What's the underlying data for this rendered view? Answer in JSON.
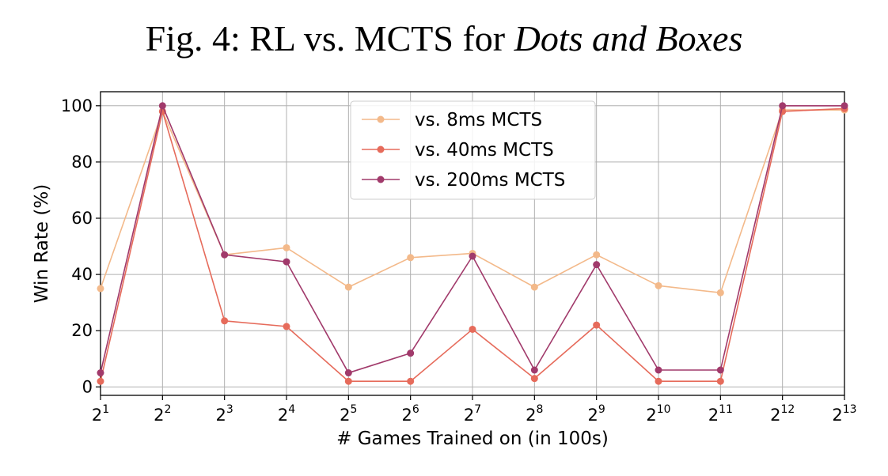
{
  "figure": {
    "title_prefix": "Fig. 4: RL vs. MCTS for ",
    "title_italic": "Dots and Boxes"
  },
  "chart_data": {
    "type": "line",
    "xlabel": "# Games Trained on (in 100s)",
    "ylabel": "Win Rate (%)",
    "x_tick_labels": [
      {
        "base": "2",
        "exp": "1"
      },
      {
        "base": "2",
        "exp": "2"
      },
      {
        "base": "2",
        "exp": "3"
      },
      {
        "base": "2",
        "exp": "4"
      },
      {
        "base": "2",
        "exp": "5"
      },
      {
        "base": "2",
        "exp": "6"
      },
      {
        "base": "2",
        "exp": "7"
      },
      {
        "base": "2",
        "exp": "8"
      },
      {
        "base": "2",
        "exp": "9"
      },
      {
        "base": "2",
        "exp": "10"
      },
      {
        "base": "2",
        "exp": "11"
      },
      {
        "base": "2",
        "exp": "12"
      },
      {
        "base": "2",
        "exp": "13"
      }
    ],
    "x": [
      2,
      4,
      8,
      16,
      32,
      64,
      128,
      256,
      512,
      1024,
      2048,
      4096,
      8192
    ],
    "x_scale": "log2",
    "y_ticks": [
      0,
      20,
      40,
      60,
      80,
      100
    ],
    "ylim": [
      -3,
      105
    ],
    "grid": true,
    "legend_position": "top-center",
    "series": [
      {
        "name": "vs. 8ms MCTS",
        "color": "#f3b98a",
        "values": [
          35,
          98,
          47,
          49.5,
          35.5,
          46,
          47.5,
          35.5,
          47,
          36,
          33.5,
          98.5,
          98.5
        ]
      },
      {
        "name": "vs. 40ms MCTS",
        "color": "#e66b5b",
        "values": [
          2,
          98,
          23.5,
          21.5,
          2,
          2,
          20.5,
          3,
          22,
          2,
          2,
          98,
          99
        ]
      },
      {
        "name": "vs. 200ms MCTS",
        "color": "#a13a6b",
        "values": [
          5,
          100,
          47,
          44.5,
          5,
          12,
          46.5,
          6,
          43.5,
          6,
          6,
          100,
          100
        ]
      }
    ]
  }
}
